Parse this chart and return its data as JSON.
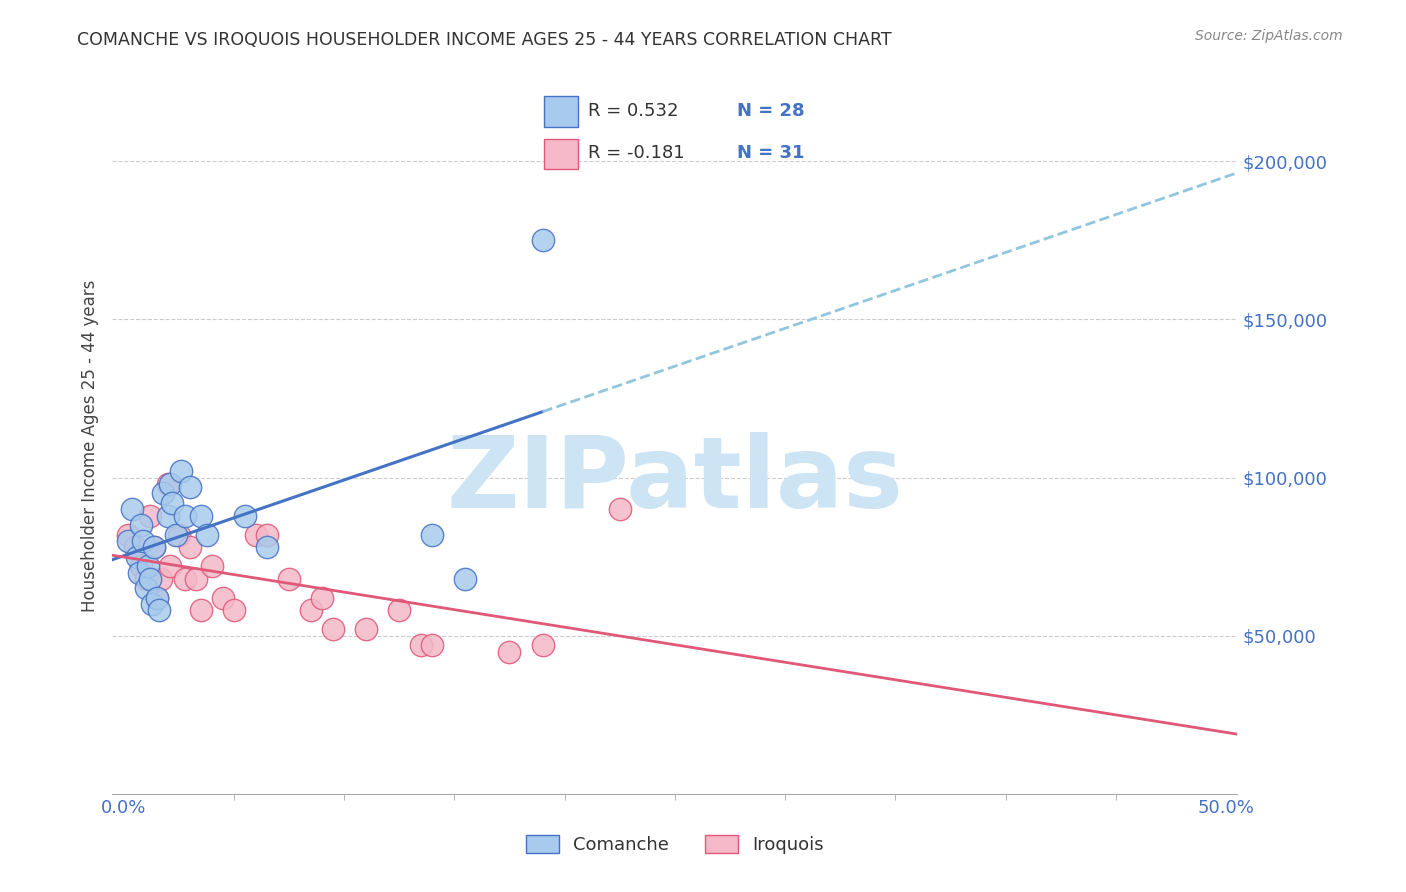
{
  "title": "COMANCHE VS IROQUOIS HOUSEHOLDER INCOME AGES 25 - 44 YEARS CORRELATION CHART",
  "source": "Source: ZipAtlas.com",
  "ylabel": "Householder Income Ages 25 - 44 years",
  "xlim": [
    -0.005,
    0.505
  ],
  "ylim": [
    0,
    220000
  ],
  "xlabel_vals": [
    0.0,
    0.5
  ],
  "xlabel_labels": [
    "0.0%",
    "50.0%"
  ],
  "ylabel_vals": [
    50000,
    100000,
    150000,
    200000
  ],
  "ylabel_labels": [
    "$50,000",
    "$100,000",
    "$150,000",
    "$200,000"
  ],
  "blue_face": "#a8caec",
  "blue_edge": "#4472c4",
  "blue_line": "#4472c4",
  "blue_dash": "#92c5de",
  "pink_face": "#f4b8c8",
  "pink_edge": "#e05878",
  "pink_line": "#e05878",
  "grid_color": "#cccccc",
  "watermark_color": "#cce4f4",
  "comanche_x": [
    0.002,
    0.004,
    0.006,
    0.007,
    0.008,
    0.009,
    0.01,
    0.011,
    0.012,
    0.013,
    0.014,
    0.015,
    0.016,
    0.018,
    0.02,
    0.021,
    0.022,
    0.024,
    0.026,
    0.028,
    0.03,
    0.035,
    0.038,
    0.055,
    0.065,
    0.14,
    0.155,
    0.19
  ],
  "comanche_y": [
    80000,
    90000,
    75000,
    70000,
    85000,
    80000,
    65000,
    72000,
    68000,
    60000,
    78000,
    62000,
    58000,
    95000,
    88000,
    98000,
    92000,
    82000,
    102000,
    88000,
    97000,
    88000,
    82000,
    88000,
    78000,
    82000,
    68000,
    175000
  ],
  "iroquois_x": [
    0.002,
    0.005,
    0.008,
    0.01,
    0.012,
    0.014,
    0.015,
    0.017,
    0.02,
    0.021,
    0.025,
    0.028,
    0.03,
    0.033,
    0.035,
    0.04,
    0.045,
    0.05,
    0.06,
    0.065,
    0.075,
    0.085,
    0.09,
    0.095,
    0.11,
    0.125,
    0.135,
    0.14,
    0.175,
    0.19,
    0.225
  ],
  "iroquois_y": [
    82000,
    78000,
    72000,
    68000,
    88000,
    78000,
    62000,
    68000,
    98000,
    72000,
    82000,
    68000,
    78000,
    68000,
    58000,
    72000,
    62000,
    58000,
    82000,
    82000,
    68000,
    58000,
    62000,
    52000,
    52000,
    58000,
    47000,
    47000,
    45000,
    47000,
    90000
  ]
}
